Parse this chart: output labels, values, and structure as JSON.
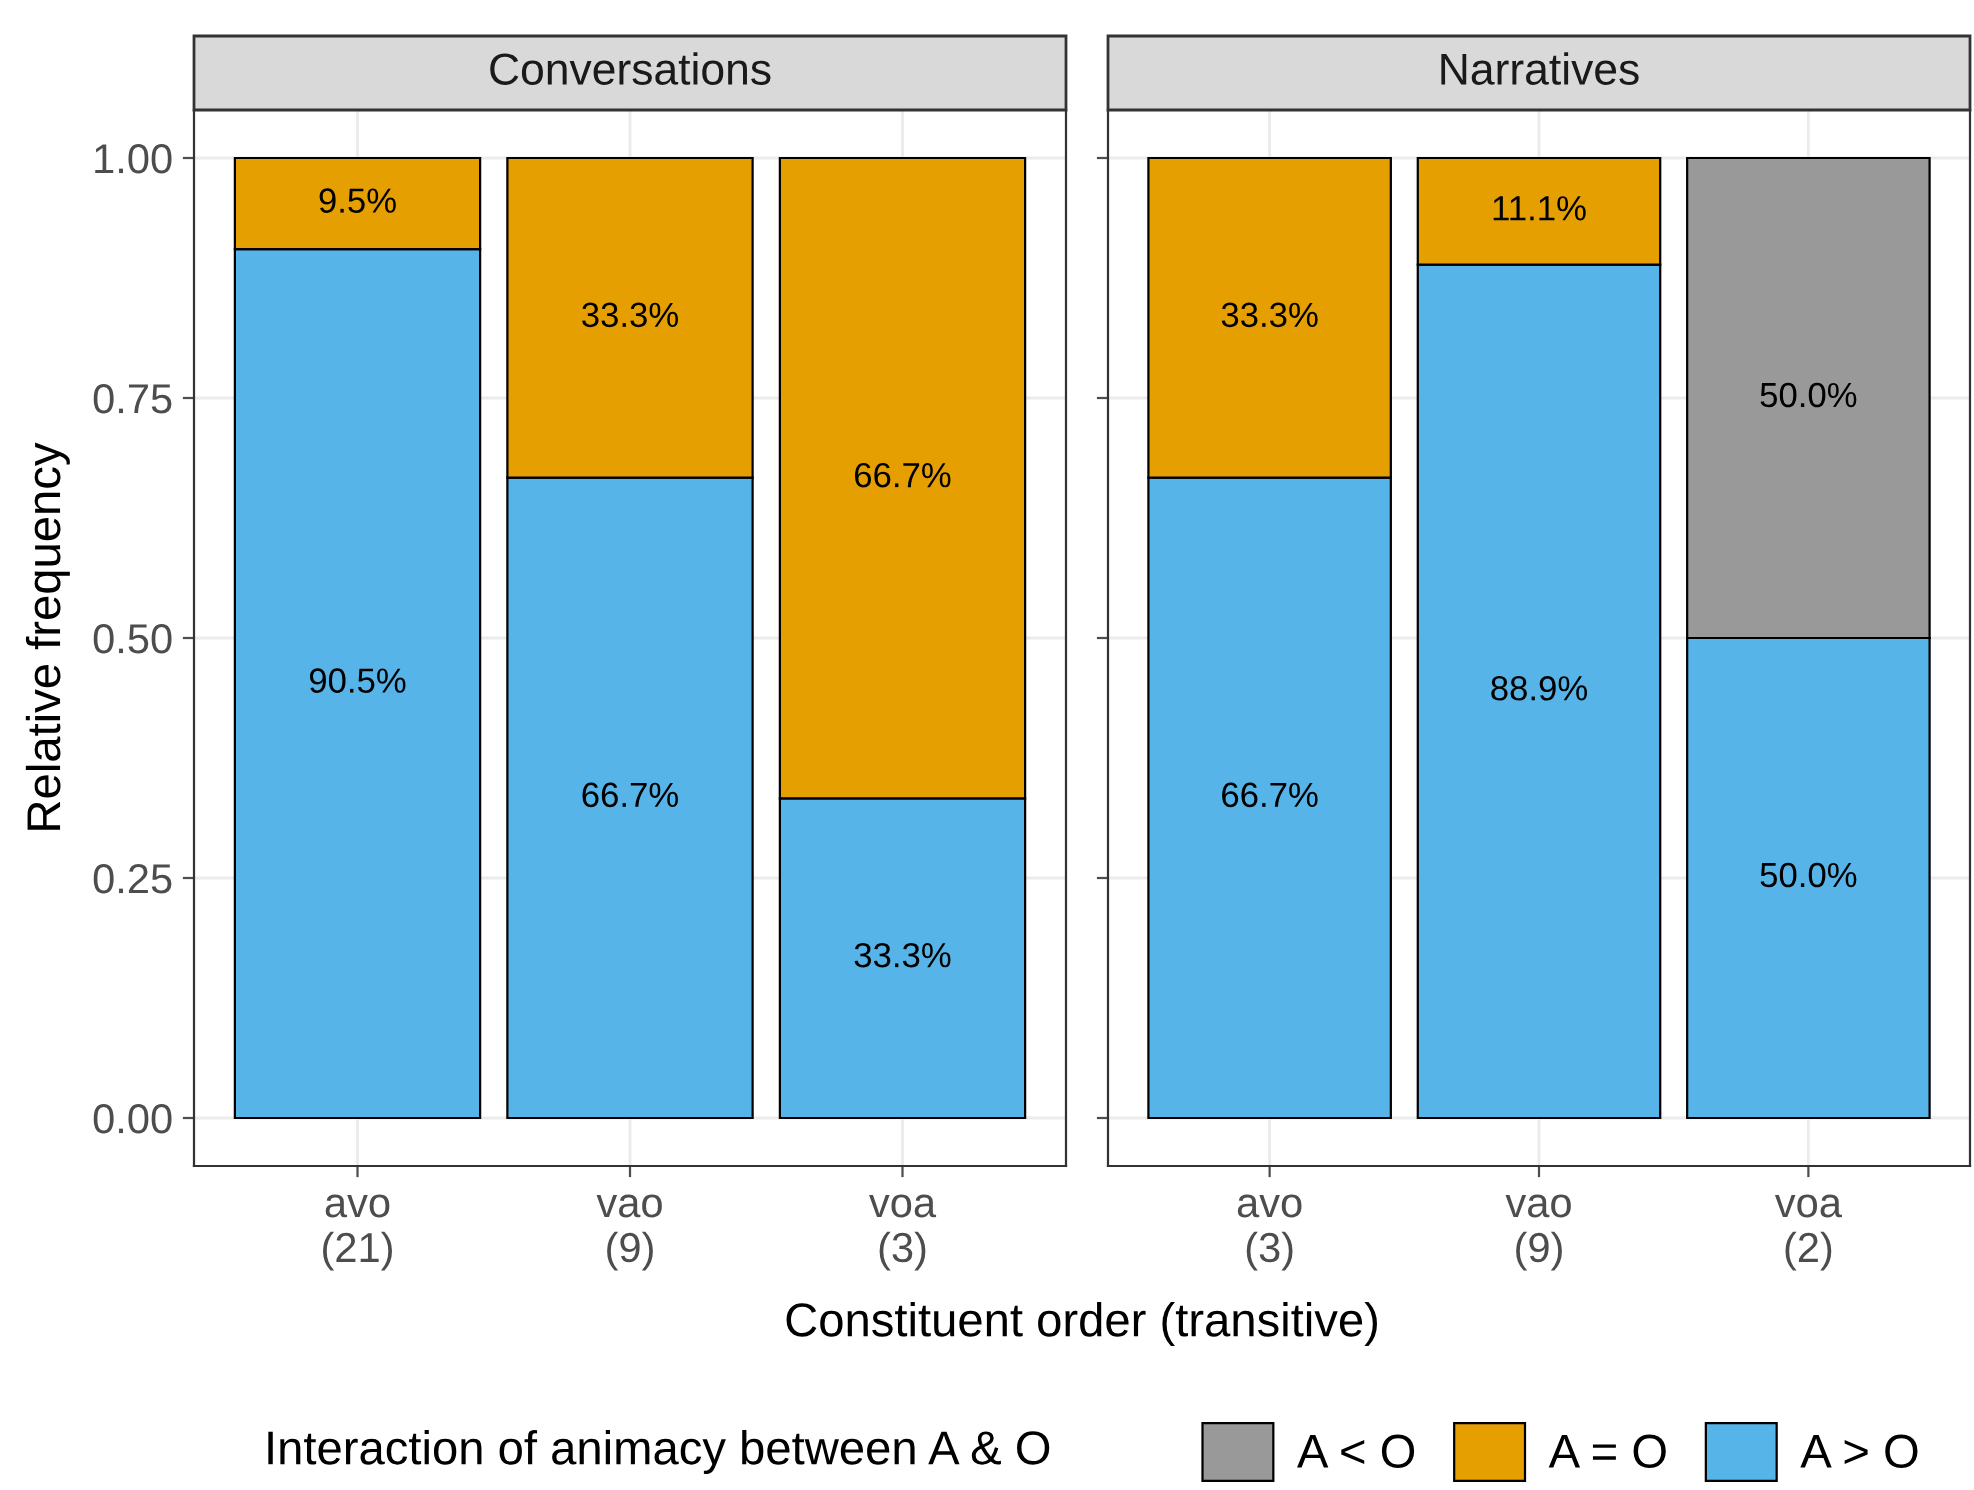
{
  "chart_data": [
    {
      "type": "bar",
      "stacked": true,
      "title": "Conversations",
      "ylabel": "Relative frequency",
      "xlabel": "Constituent order (transitive)",
      "legend_title": "Interaction of animacy between A & O",
      "legend": "bottom",
      "grid": true,
      "categories": [
        "avo\n(21)",
        "vao\n(9)",
        "voa\n(3)"
      ],
      "ylim": [
        -0.05,
        1.05
      ],
      "yticks": [
        {
          "value": 0,
          "label": "0.00"
        },
        {
          "value": 0.25,
          "label": "0.25"
        },
        {
          "value": 0.5,
          "label": "0.50"
        },
        {
          "value": 0.75,
          "label": "0.75"
        },
        {
          "value": 1,
          "label": "1.00"
        }
      ],
      "series": [
        {
          "name": "A > O",
          "color": "#56b4e9",
          "values": [
            0.905,
            0.667,
            0.333
          ],
          "value_labels": [
            "90.5%",
            "66.7%",
            "33.3%"
          ]
        },
        {
          "name": "A = O",
          "color": "#e69f00",
          "values": [
            0.095,
            0.333,
            0.667
          ],
          "value_labels": [
            "9.5%",
            "33.3%",
            "66.7%"
          ]
        },
        {
          "name": "A < O",
          "color": "#999999",
          "values": [
            null,
            null,
            null
          ],
          "value_labels": [
            null,
            null,
            null
          ]
        }
      ]
    },
    {
      "type": "bar",
      "stacked": true,
      "title": "Narratives",
      "grid": true,
      "tick_labels": "x",
      "categories": [
        "avo\n(3)",
        "vao\n(9)",
        "voa\n(2)"
      ],
      "ylim": [
        -0.05,
        1.05
      ],
      "yticks": [
        {
          "value": 0,
          "label": null
        },
        {
          "value": 0.25,
          "label": null
        },
        {
          "value": 0.5,
          "label": null
        },
        {
          "value": 0.75,
          "label": null
        },
        {
          "value": 1,
          "label": null
        }
      ],
      "series": [
        {
          "color": "#56b4e9",
          "values": [
            0.667,
            0.889,
            0.5
          ],
          "value_labels": [
            "66.7%",
            "88.9%",
            "50.0%"
          ]
        },
        {
          "color": "#e69f00",
          "values": [
            0.333,
            0.111,
            null
          ],
          "value_labels": [
            "33.3%",
            "11.1%",
            null
          ]
        },
        {
          "color": "#999999",
          "values": [
            null,
            null,
            0.5
          ],
          "value_labels": [
            null,
            null,
            "50.0%"
          ]
        }
      ]
    }
  ]
}
